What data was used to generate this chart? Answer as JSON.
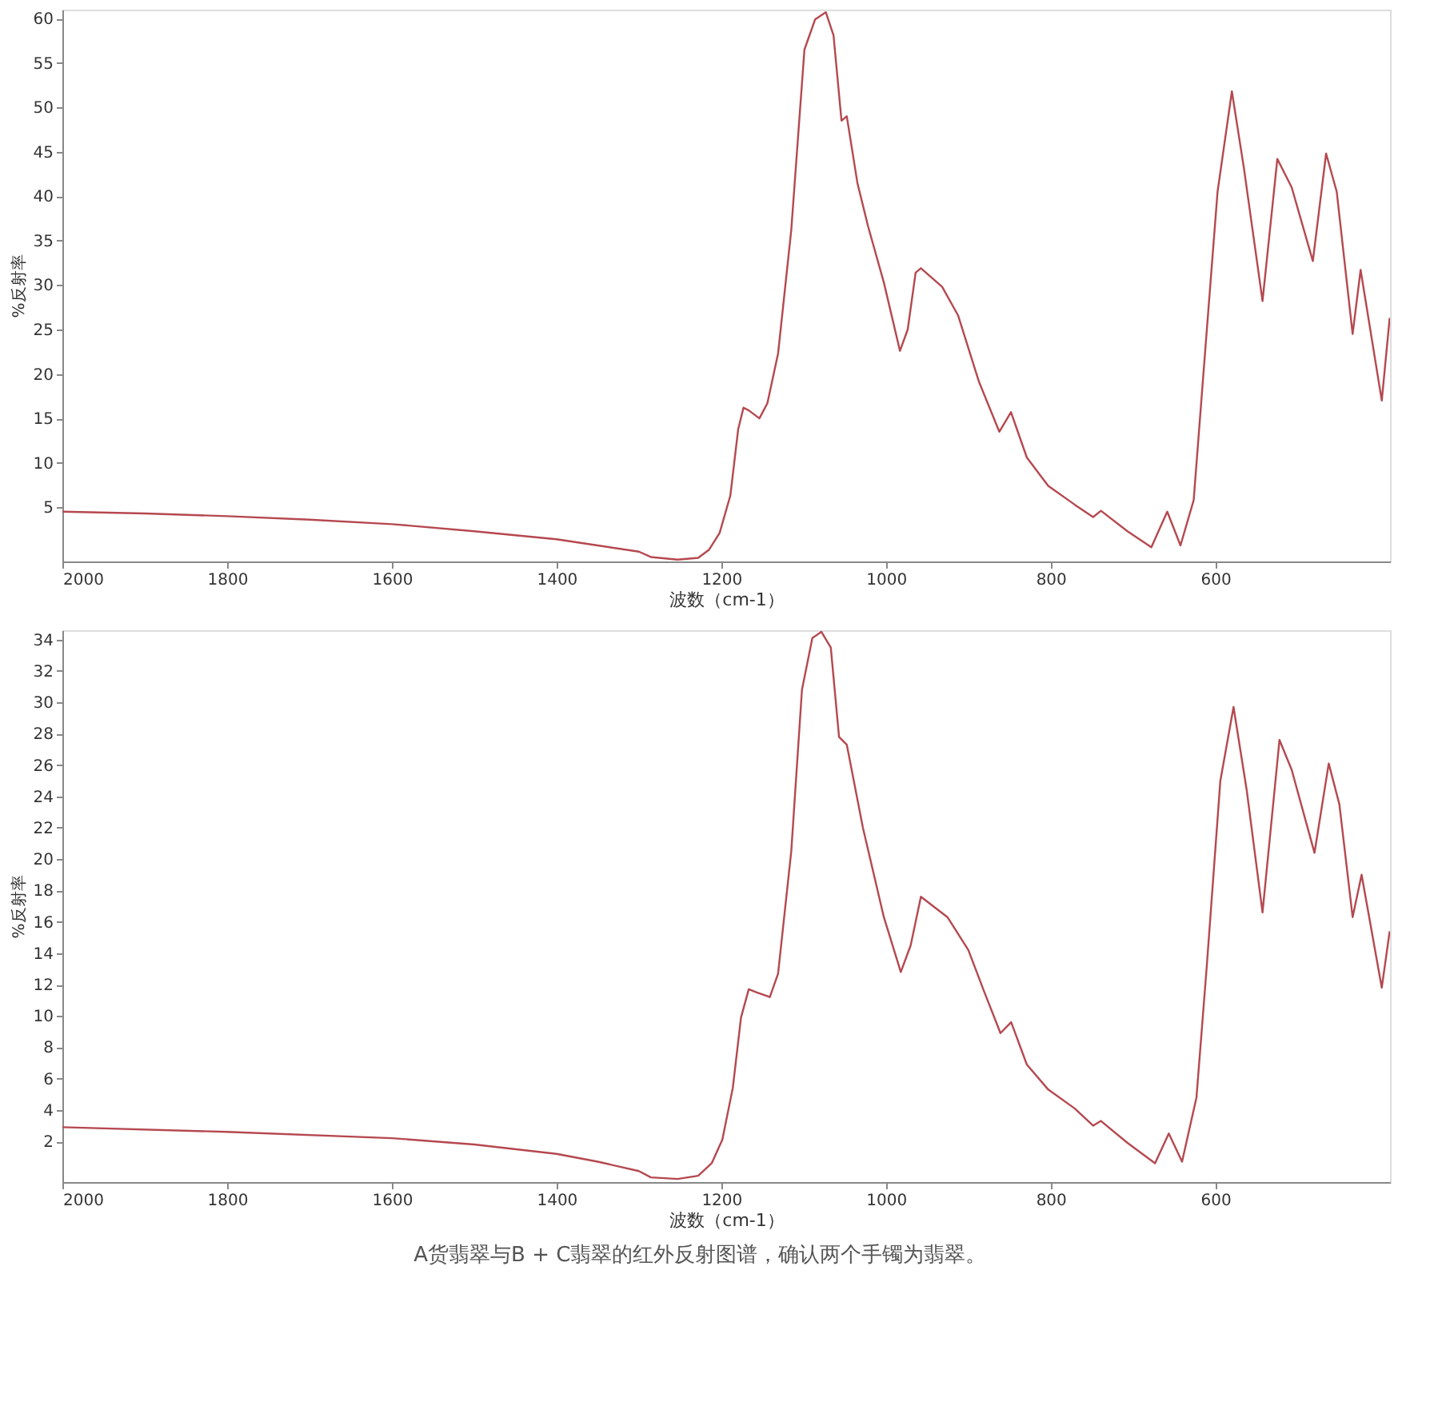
{
  "chart_data": [
    {
      "type": "line",
      "xlabel": "波数（cm-1）",
      "ylabel": "%反射率",
      "xlim": [
        2000,
        388
      ],
      "xticks": [
        2000,
        1800,
        1600,
        1400,
        1200,
        1000,
        800,
        600
      ],
      "ylim": [
        -1.1,
        61
      ],
      "yticks": [
        5,
        10,
        15,
        20,
        25,
        30,
        35,
        40,
        45,
        50,
        55,
        60
      ],
      "grid": false,
      "marker": "none",
      "line_style": "solid",
      "series": [
        {
          "color": "#b5484f",
          "x": [
            2000,
            1900,
            1800,
            1700,
            1600,
            1500,
            1400,
            1350,
            1300,
            1285.5,
            1253,
            1228,
            1215,
            1202,
            1189,
            1179.4,
            1173,
            1166.6,
            1153.7,
            1144,
            1131,
            1115,
            1099,
            1086,
            1073,
            1063.7,
            1054,
            1047.6,
            1034.7,
            1022,
            1002.6,
            983,
            973.6,
            964,
            957.6,
            931.8,
            912.5,
            887,
            862.4,
            848.2,
            829,
            803,
            771,
            748.5,
            739,
            706.8,
            677.8,
            658.5,
            642.4,
            626.4,
            613.5,
            597.4,
            580,
            565.3,
            542.8,
            524.8,
            507.4,
            481.7,
            465.6,
            452.7,
            433.4,
            423.7,
            398,
            388.4
          ],
          "values": [
            4.5,
            4.3,
            4.0,
            3.6,
            3.1,
            2.3,
            1.4,
            0.7,
            0.0,
            -0.6,
            -0.9,
            -0.7,
            0.2,
            2.1,
            6.3,
            13.8,
            16.2,
            15.9,
            15.0,
            16.7,
            22.3,
            36.2,
            56.5,
            59.9,
            60.7,
            58.1,
            48.5,
            49.0,
            41.5,
            36.7,
            30.3,
            22.6,
            25.0,
            31.4,
            31.9,
            29.8,
            26.6,
            19.1,
            13.5,
            15.7,
            10.6,
            7.4,
            5.3,
            3.9,
            4.6,
            2.3,
            0.5,
            4.5,
            0.7,
            5.8,
            21.3,
            40.5,
            51.8,
            43.1,
            28.2,
            44.2,
            41.0,
            32.7,
            44.8,
            40.5,
            24.5,
            31.7,
            17.0,
            26.3
          ]
        }
      ]
    },
    {
      "type": "line",
      "xlabel": "波数（cm-1）",
      "ylabel": "%反射率",
      "xlim": [
        2000,
        388
      ],
      "xticks": [
        2000,
        1800,
        1600,
        1400,
        1200,
        1000,
        800,
        600
      ],
      "ylim": [
        -0.6,
        34.6
      ],
      "yticks": [
        2,
        4,
        6,
        8,
        10,
        12,
        14,
        16,
        18,
        20,
        22,
        24,
        26,
        28,
        30,
        32,
        34
      ],
      "grid": false,
      "marker": "none",
      "line_style": "solid",
      "annotations": [
        "A货翡翠与B + C翡翠的红外反射图谱，确认两个手镯为翡翠。"
      ],
      "series": [
        {
          "color": "#b5484f",
          "x": [
            2000,
            1800,
            1600,
            1500,
            1400,
            1350,
            1300,
            1285.5,
            1253,
            1228,
            1211.6,
            1198.7,
            1186,
            1176,
            1166.6,
            1157,
            1141,
            1131,
            1115,
            1102,
            1089.4,
            1078.5,
            1067,
            1057,
            1047.6,
            1028,
            1002.6,
            982,
            970,
            957.6,
            925.4,
            900,
            880.4,
            861,
            848,
            829,
            803,
            771,
            748.5,
            739,
            706.8,
            673.3,
            656.6,
            640.5,
            623,
            610.3,
            594,
            578,
            562,
            542.8,
            522.2,
            507.4,
            479.7,
            462.4,
            449.5,
            433.4,
            422.5,
            398,
            388.4
          ],
          "values": [
            2.9,
            2.6,
            2.2,
            1.8,
            1.2,
            0.7,
            0.1,
            -0.3,
            -0.4,
            -0.2,
            0.6,
            2.1,
            5.4,
            9.9,
            11.7,
            11.5,
            11.2,
            12.7,
            20.5,
            30.8,
            34.1,
            34.5,
            33.5,
            27.8,
            27.3,
            22.0,
            16.3,
            12.8,
            14.5,
            17.6,
            16.3,
            14.2,
            11.5,
            8.9,
            9.6,
            6.9,
            5.3,
            4.1,
            3.0,
            3.3,
            1.9,
            0.6,
            2.5,
            0.7,
            4.8,
            13.3,
            25.0,
            29.7,
            24.4,
            16.6,
            27.6,
            25.7,
            20.4,
            26.1,
            23.5,
            16.3,
            19.0,
            11.8,
            15.4
          ]
        }
      ]
    }
  ]
}
